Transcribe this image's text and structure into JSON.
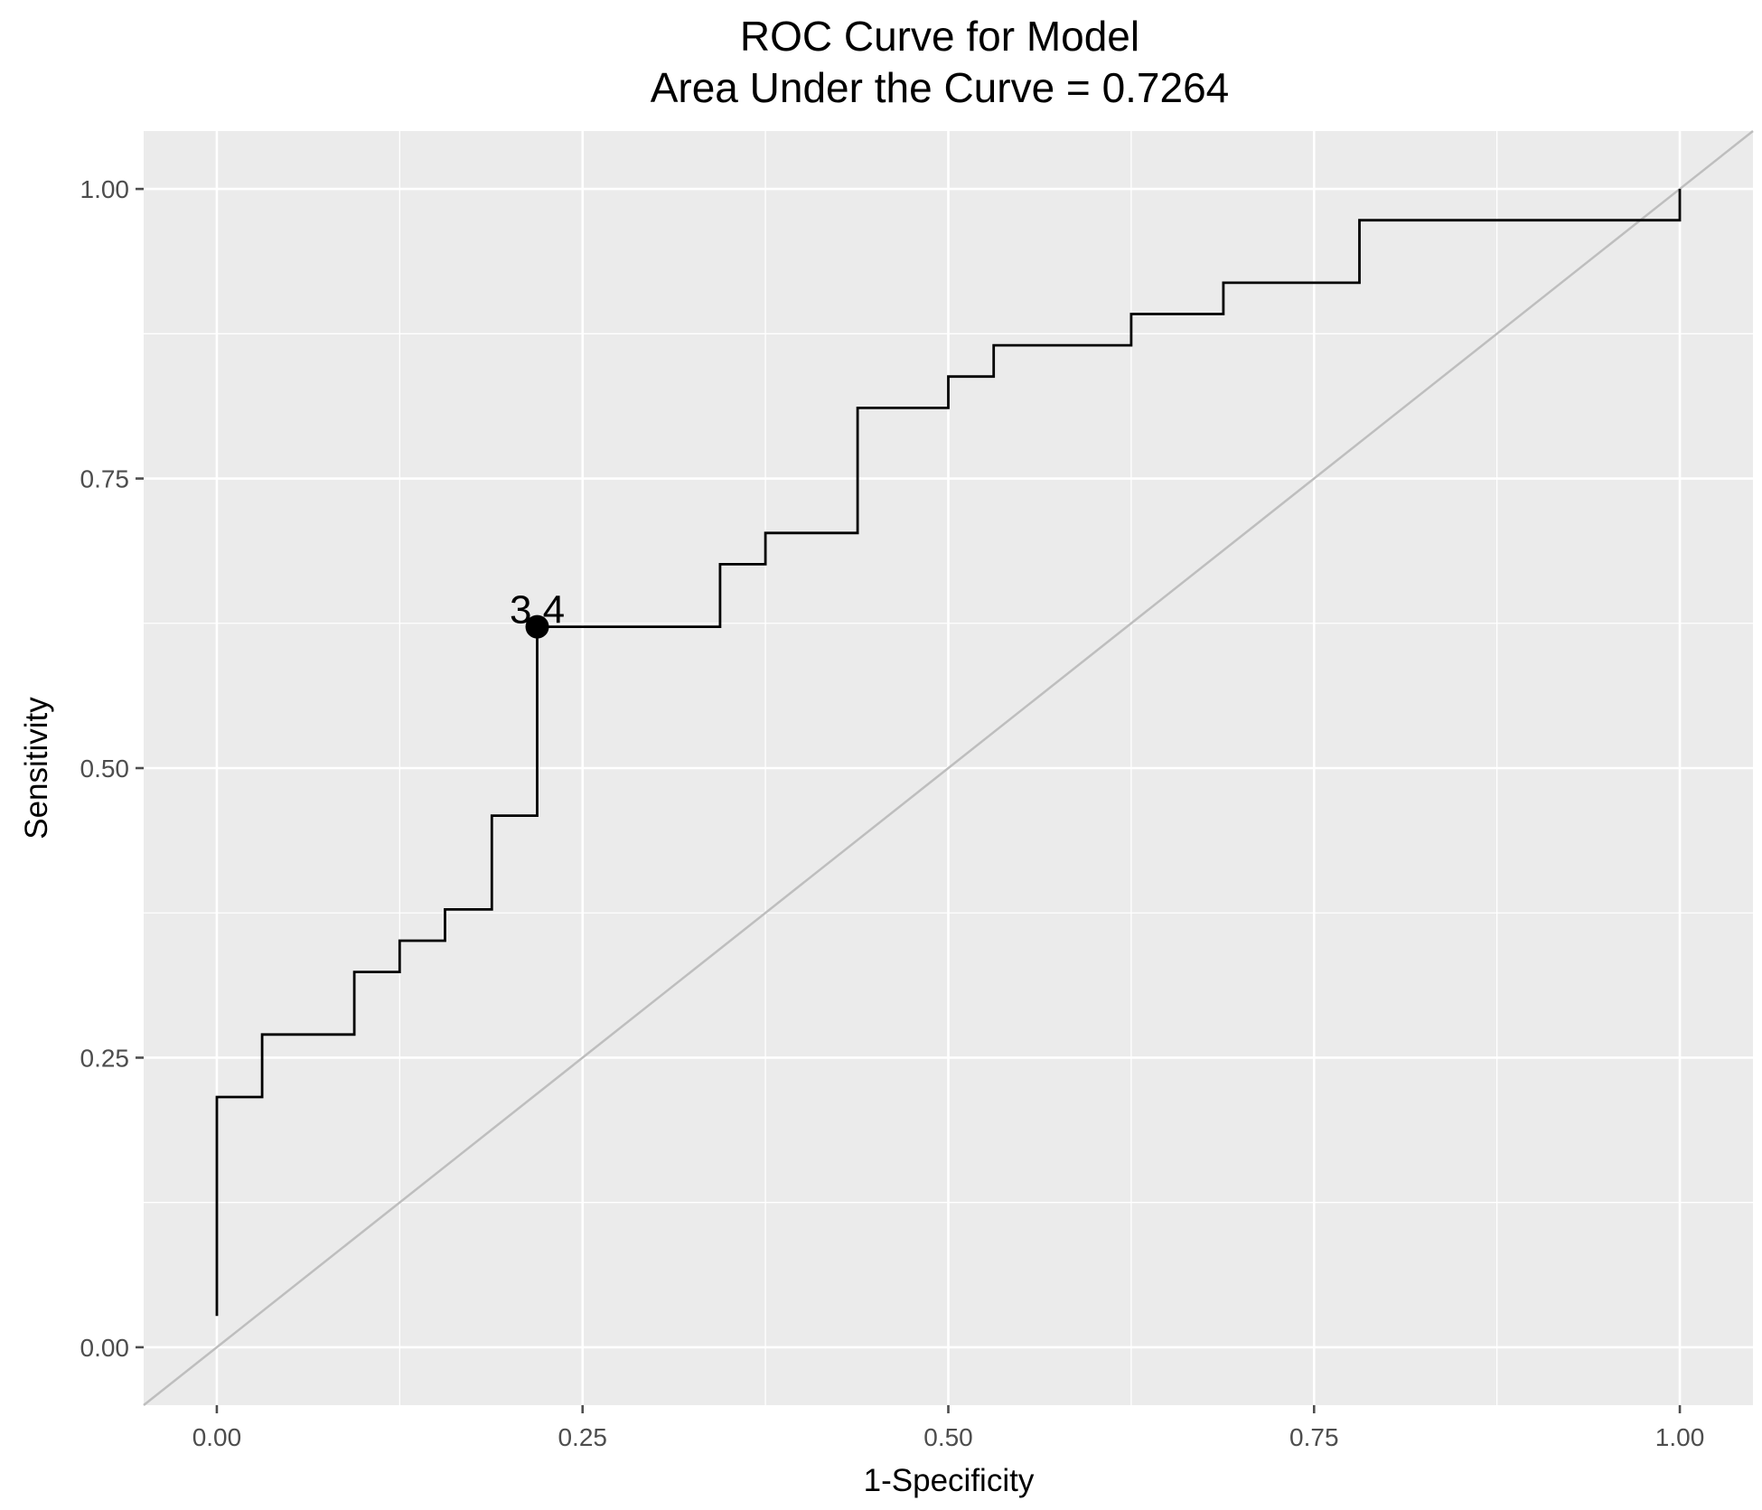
{
  "chart_data": {
    "type": "line",
    "title": "ROC Curve for Model",
    "subtitle": "Area Under the Curve = 0.7264",
    "xlabel": "1-Specificity",
    "ylabel": "Sensitivity",
    "xlim": [
      -0.05,
      1.05
    ],
    "ylim": [
      -0.05,
      1.05
    ],
    "x_ticks": [
      0,
      0.25,
      0.5,
      0.75,
      1
    ],
    "x_tick_labels": [
      "0.00",
      "0.25",
      "0.50",
      "0.75",
      "1.00"
    ],
    "y_ticks": [
      0,
      0.25,
      0.5,
      0.75,
      1
    ],
    "y_tick_labels": [
      "0.00",
      "0.25",
      "0.50",
      "0.75",
      "1.00"
    ],
    "grid": true,
    "colors": {
      "panel": "#ebebeb",
      "grid": "#ffffff",
      "curve": "#000000",
      "diagonal": "#bebebe",
      "ticks": "#4d4d4d"
    },
    "roc_curve": {
      "x": [
        0,
        0,
        0.031,
        0.031,
        0.094,
        0.094,
        0.125,
        0.125,
        0.156,
        0.156,
        0.188,
        0.188,
        0.219,
        0.219,
        0.344,
        0.344,
        0.375,
        0.375,
        0.438,
        0.438,
        0.5,
        0.5,
        0.531,
        0.531,
        0.625,
        0.625,
        0.688,
        0.688,
        0.781,
        0.781,
        1.0,
        1.0
      ],
      "y": [
        0.027,
        0.216,
        0.216,
        0.27,
        0.27,
        0.324,
        0.324,
        0.351,
        0.351,
        0.378,
        0.378,
        0.459,
        0.459,
        0.622,
        0.622,
        0.676,
        0.676,
        0.703,
        0.703,
        0.811,
        0.811,
        0.838,
        0.838,
        0.865,
        0.865,
        0.892,
        0.892,
        0.919,
        0.919,
        0.973,
        0.973,
        1.0
      ]
    },
    "reference_line": {
      "x": [
        -0.05,
        1.05
      ],
      "y": [
        -0.05,
        1.05
      ]
    },
    "highlight_point": {
      "x": 0.219,
      "y": 0.622,
      "label": "3.4"
    }
  }
}
